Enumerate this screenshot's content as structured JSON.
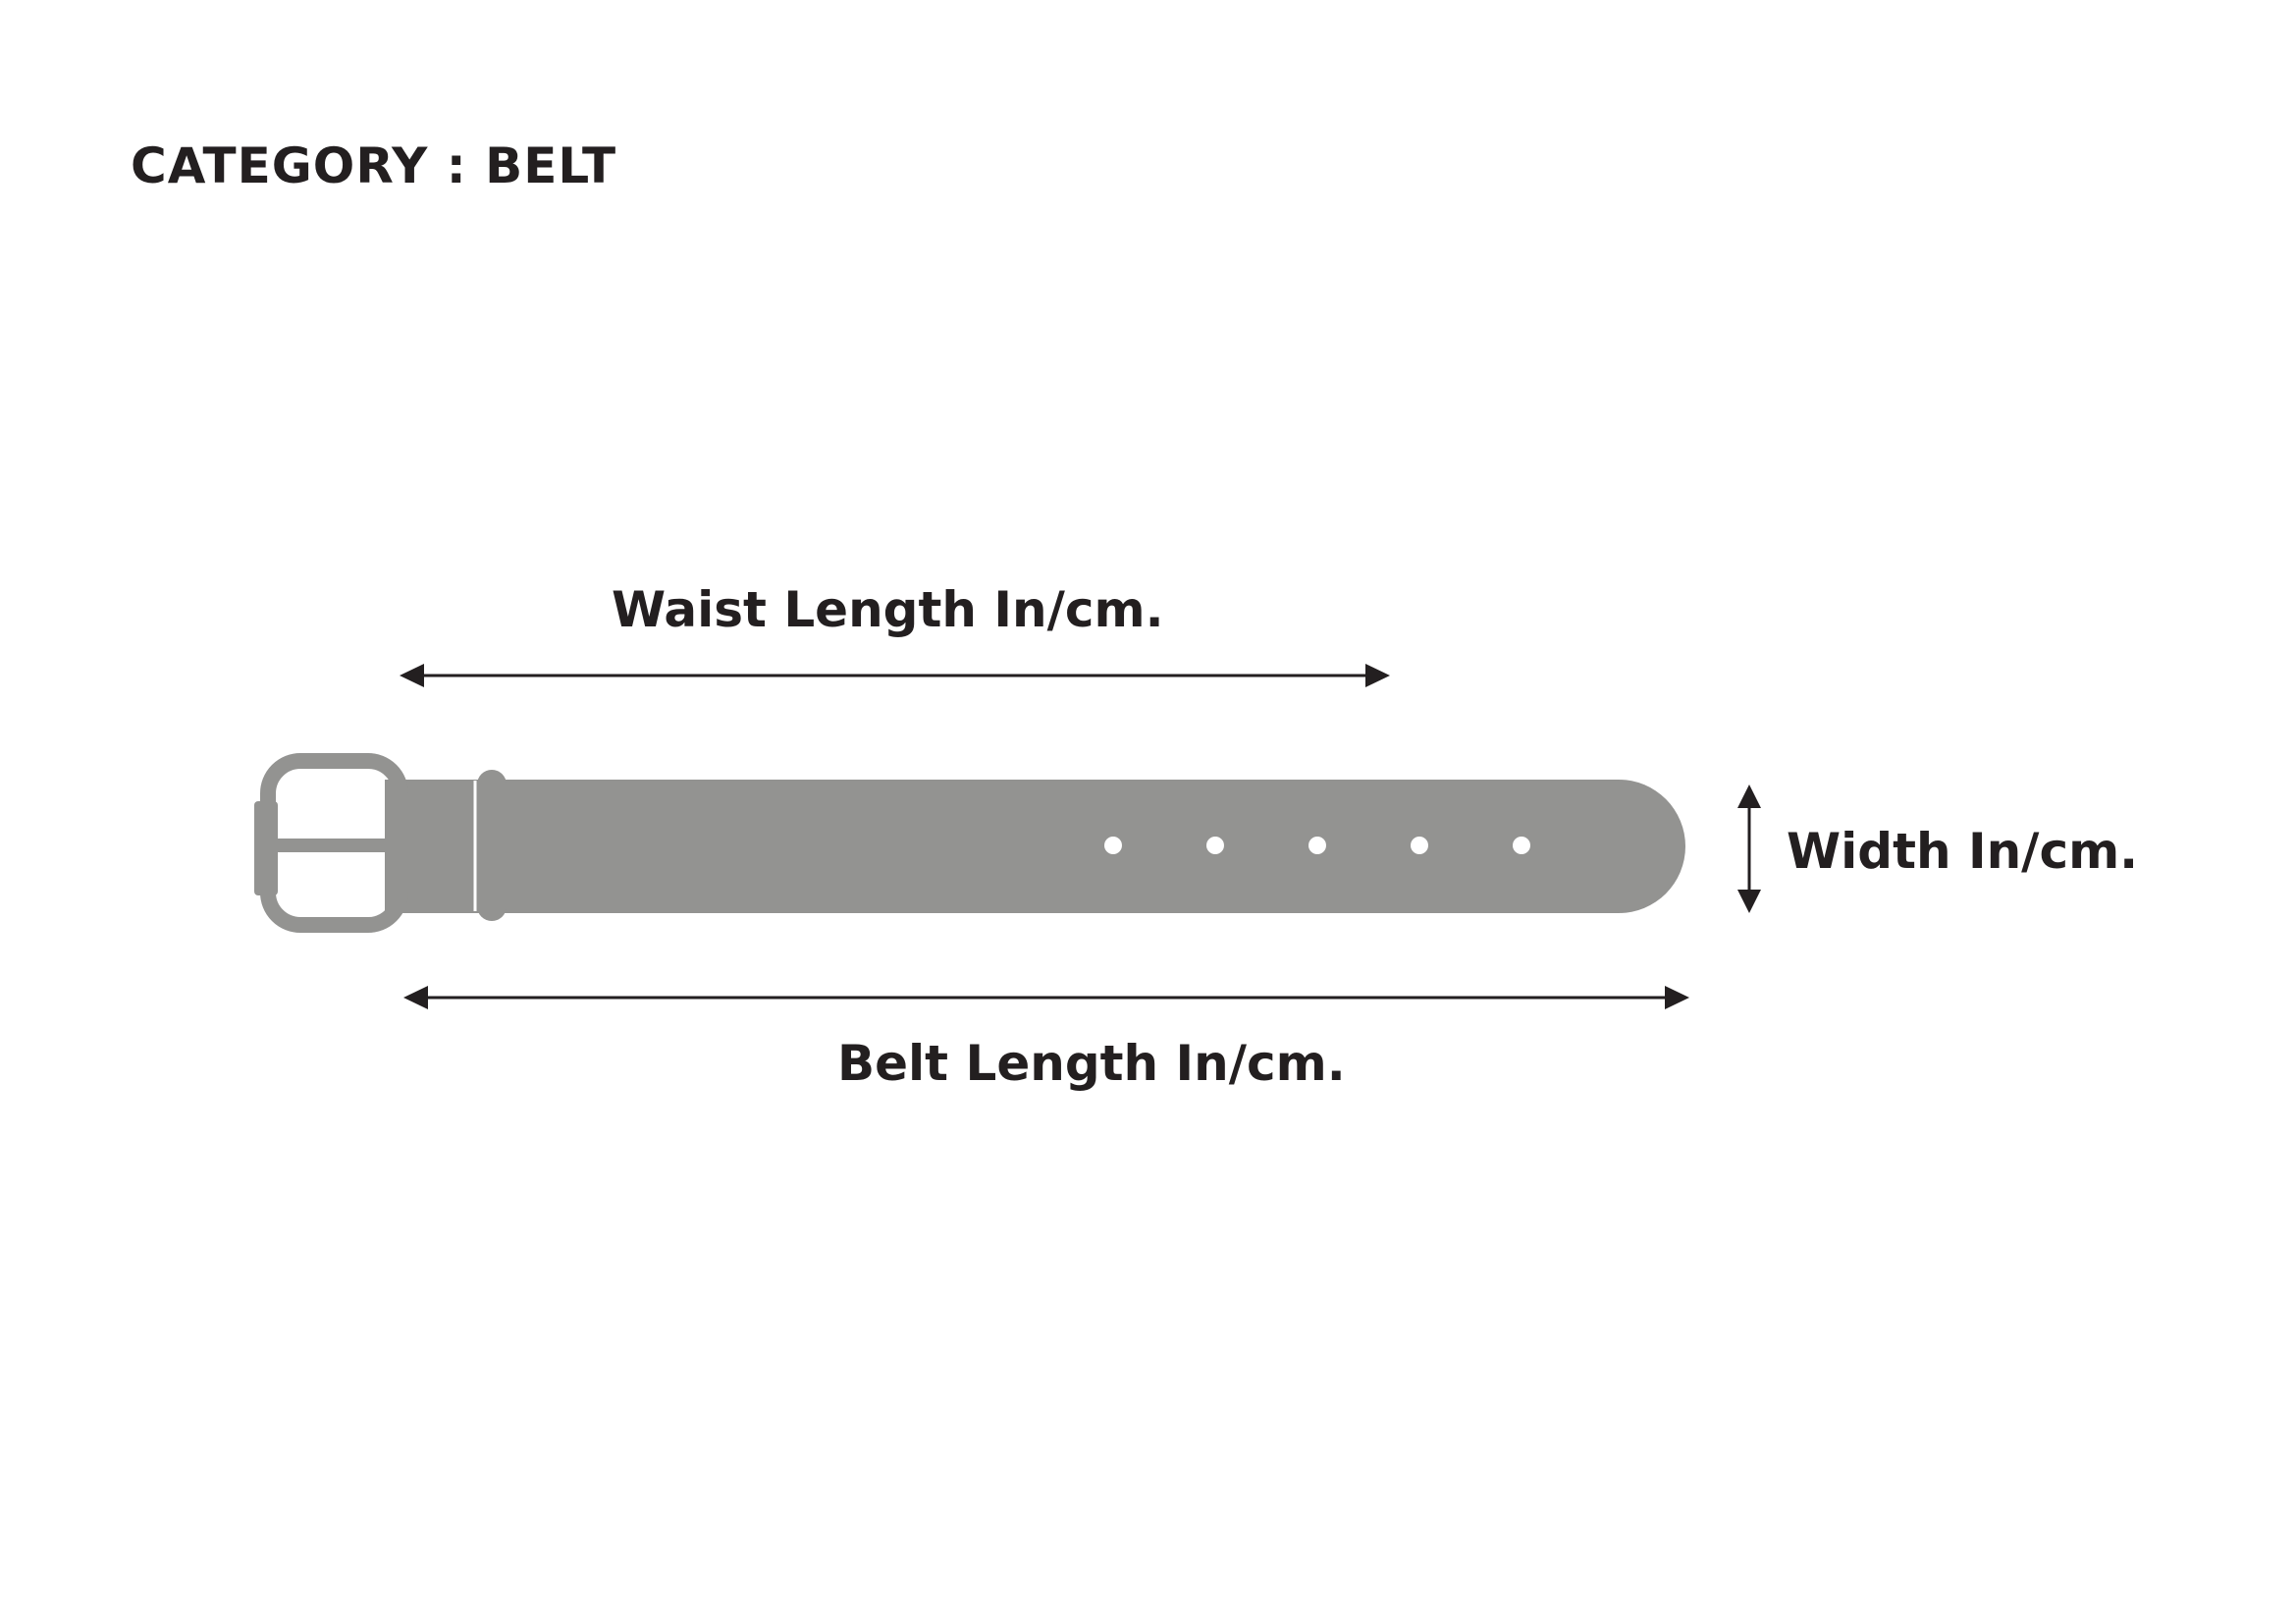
{
  "category": {
    "title": "CATEGORY : BELT"
  },
  "measurements": {
    "waist_label": "Waist Length In/cm.",
    "belt_label": "Belt Length In/cm.",
    "width_label": "Width In/cm."
  },
  "colors": {
    "belt": "#939391",
    "buckle": "#939391",
    "text": "#231f20",
    "hole": "#ffffff",
    "background": "#ffffff"
  },
  "belt": {
    "hole_count": 5
  }
}
